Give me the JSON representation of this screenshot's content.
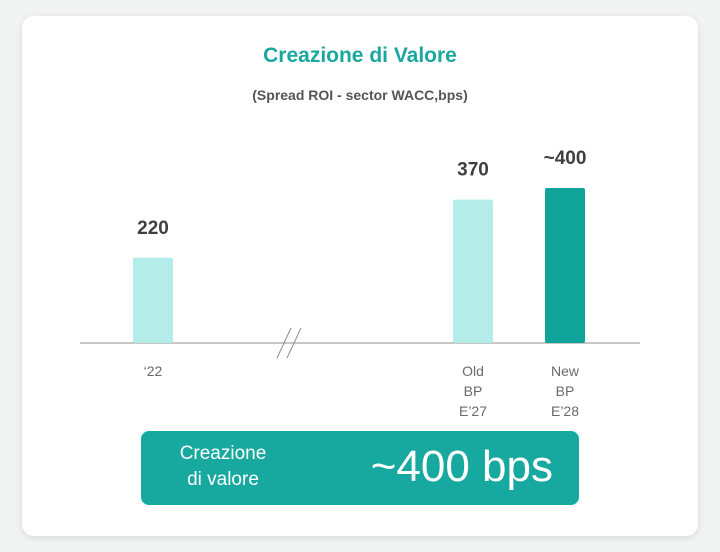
{
  "chart_data": {
    "type": "bar",
    "title": "Creazione di Valore",
    "subtitle": "(Spread ROI - sector WACC,bps)",
    "categories": [
      "‘22",
      "Old\nBP\nE’27",
      "New\nBP\nE’28"
    ],
    "values": [
      220,
      370,
      400
    ],
    "value_labels": [
      "220",
      "370",
      "~400"
    ],
    "bar_colors": [
      "#b4ecea",
      "#b4ecea",
      "#0fa39a"
    ],
    "axis_break_between": [
      0,
      1
    ],
    "ylim": [
      0,
      450
    ],
    "grid": false,
    "legend": "none"
  },
  "banner": {
    "label": "Creazione\ndi valore",
    "value": "~400 bps"
  },
  "colors": {
    "accent": "#1aa79e",
    "bar_light": "#b4ecea",
    "bar_dark": "#0fa39a",
    "banner_bg": "#17a9a0"
  }
}
